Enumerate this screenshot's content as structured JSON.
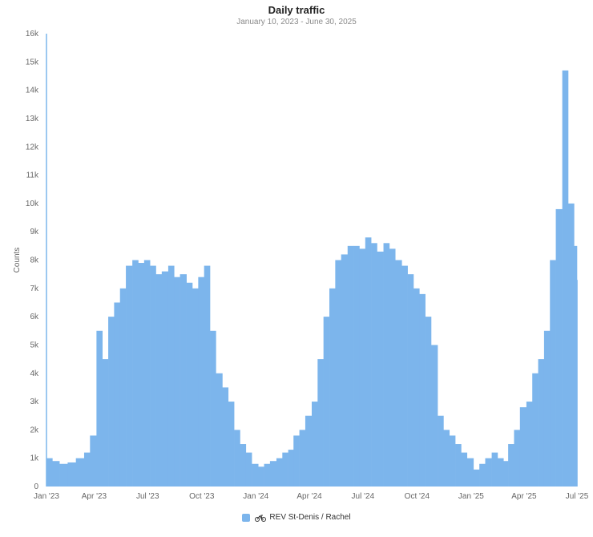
{
  "chart_data": {
    "type": "bar",
    "title": "Daily traffic",
    "subtitle": "January 10, 2023 - June 30, 2025",
    "ylabel": "Counts",
    "xlabel": "",
    "ylim": [
      0,
      16000
    ],
    "yticks": [
      "0",
      "1k",
      "2k",
      "3k",
      "4k",
      "5k",
      "6k",
      "7k",
      "8k",
      "9k",
      "10k",
      "11k",
      "12k",
      "13k",
      "14k",
      "15k",
      "16k"
    ],
    "xticks": [
      "Jan '23",
      "Apr '23",
      "Jul '23",
      "Oct '23",
      "Jan '24",
      "Apr '24",
      "Jul '24",
      "Oct '24",
      "Jan '25",
      "Apr '25",
      "Jul '25"
    ],
    "x_start": "2023-01-10",
    "x_end": "2025-06-30",
    "series": [
      {
        "name": "REV St-Denis / Rachel",
        "color": "#7cb5ec",
        "x": [
          "2023-01-10",
          "2023-01-20",
          "2023-02-01",
          "2023-02-15",
          "2023-03-01",
          "2023-03-15",
          "2023-03-25",
          "2023-04-05",
          "2023-04-15",
          "2023-04-25",
          "2023-05-05",
          "2023-05-15",
          "2023-05-25",
          "2023-06-05",
          "2023-06-15",
          "2023-06-25",
          "2023-07-05",
          "2023-07-15",
          "2023-07-25",
          "2023-08-05",
          "2023-08-15",
          "2023-08-25",
          "2023-09-05",
          "2023-09-15",
          "2023-09-25",
          "2023-10-05",
          "2023-10-15",
          "2023-10-25",
          "2023-11-05",
          "2023-11-15",
          "2023-11-25",
          "2023-12-05",
          "2023-12-15",
          "2023-12-25",
          "2024-01-05",
          "2024-01-15",
          "2024-01-25",
          "2024-02-05",
          "2024-02-15",
          "2024-02-25",
          "2024-03-05",
          "2024-03-15",
          "2024-03-25",
          "2024-04-05",
          "2024-04-15",
          "2024-04-25",
          "2024-05-05",
          "2024-05-15",
          "2024-05-25",
          "2024-06-05",
          "2024-06-15",
          "2024-06-25",
          "2024-07-05",
          "2024-07-15",
          "2024-07-25",
          "2024-08-05",
          "2024-08-15",
          "2024-08-25",
          "2024-09-05",
          "2024-09-15",
          "2024-09-25",
          "2024-10-05",
          "2024-10-15",
          "2024-10-25",
          "2024-11-05",
          "2024-11-15",
          "2024-11-25",
          "2024-12-05",
          "2024-12-15",
          "2024-12-25",
          "2025-01-05",
          "2025-01-15",
          "2025-01-25",
          "2025-02-05",
          "2025-02-15",
          "2025-02-25",
          "2025-03-05",
          "2025-03-15",
          "2025-03-25",
          "2025-04-05",
          "2025-04-15",
          "2025-04-25",
          "2025-05-05",
          "2025-05-15",
          "2025-05-25",
          "2025-06-05",
          "2025-06-15",
          "2025-06-25",
          "2025-06-30"
        ],
        "values": [
          1000,
          900,
          800,
          850,
          1000,
          1200,
          1800,
          5500,
          4500,
          6000,
          6500,
          7000,
          7800,
          8000,
          7900,
          8000,
          7800,
          7500,
          7600,
          7800,
          7400,
          7500,
          7200,
          7000,
          7400,
          7800,
          5500,
          4000,
          3500,
          3000,
          2000,
          1500,
          1200,
          800,
          700,
          800,
          900,
          1000,
          1200,
          1300,
          1800,
          2000,
          2500,
          3000,
          4500,
          6000,
          7000,
          8000,
          8200,
          8500,
          8500,
          8400,
          8800,
          8600,
          8300,
          8600,
          8400,
          8000,
          7800,
          7500,
          7000,
          6800,
          6000,
          5000,
          2500,
          2000,
          1800,
          1500,
          1200,
          1000,
          600,
          800,
          1000,
          1200,
          1000,
          900,
          1500,
          2000,
          2800,
          3000,
          4000,
          4500,
          5500,
          8000,
          9800,
          14700,
          10000,
          8500,
          7300
        ]
      }
    ],
    "grid": false,
    "legend_position": "bottom"
  },
  "legend": {
    "icon": "bicycle-icon"
  }
}
